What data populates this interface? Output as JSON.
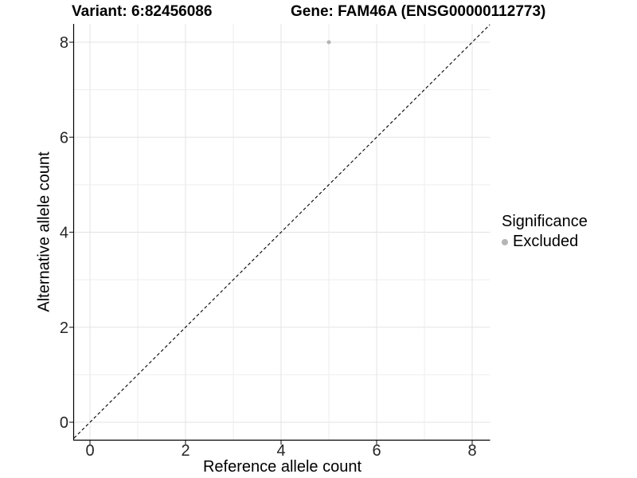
{
  "chart_data": {
    "type": "scatter",
    "title_left": "Variant: 6:82456086",
    "title_right": "Gene: FAM46A (ENSG00000112773)",
    "xlabel": "Reference allele count",
    "ylabel": "Alternative allele count",
    "xlim": [
      -0.35,
      8.4
    ],
    "ylim": [
      -0.35,
      8.4
    ],
    "x_ticks": [
      0,
      2,
      4,
      6,
      8
    ],
    "y_ticks": [
      0,
      2,
      4,
      6,
      8
    ],
    "grid": {
      "on": true,
      "interval": 1,
      "major_color": "#e3e3e3",
      "minor_color": "#eeeeee"
    },
    "reference_line": {
      "type": "identity y=x",
      "style": "dashed",
      "color": "#000000"
    },
    "points": [
      {
        "x": 5,
        "y": 8,
        "series": "Excluded"
      }
    ],
    "legend": {
      "title": "Significance",
      "position": "right",
      "items": [
        {
          "label": "Excluded",
          "color": "#b5b5b5"
        }
      ]
    },
    "axis_color": "#000000",
    "tick_label_color": "#262626",
    "background_color": "#ffffff"
  }
}
